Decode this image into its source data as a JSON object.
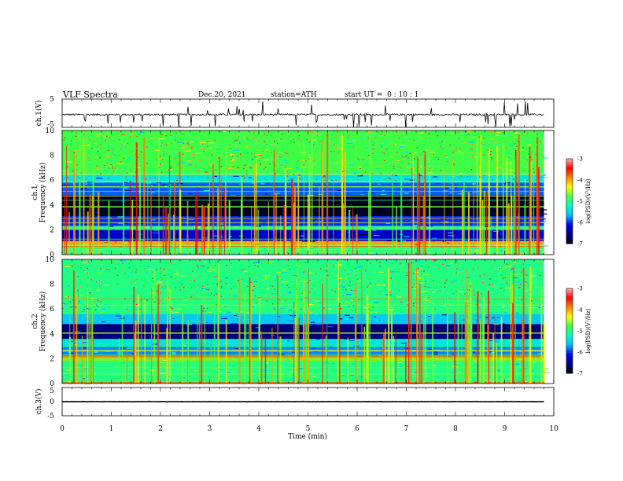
{
  "header": {
    "title": "VLF Spectra",
    "date": "Dec.20, 2021",
    "station": "station=ATH",
    "start_ut": "start UT =  0 : 10 : 1"
  },
  "chart_data": [
    {
      "type": "line",
      "panel": "ch.1 waveform",
      "ylabel": "ch.1(V)",
      "ylim": [
        -5,
        5
      ],
      "yticks": [
        "5",
        "-5"
      ],
      "xlim": [
        0,
        10
      ],
      "signal": {
        "baseline": -0.5,
        "noise_amplitude": 0.6,
        "spikes": "frequent short negative and positive spikes",
        "end_min": 9.8
      }
    },
    {
      "type": "heatmap",
      "panel": "ch.1 spectrogram",
      "ylabel_channel": "ch.1",
      "ylabel": "Frequency (kHz)",
      "ylim": [
        0,
        10
      ],
      "yticks": [
        "0",
        "2",
        "4",
        "6",
        "8",
        "10"
      ],
      "xlim": [
        0,
        10
      ],
      "colorbar": {
        "label": "log(PSD)(V²/Hz)",
        "range": [
          -7,
          -3
        ],
        "ticks": [
          "-3",
          "-4",
          "-5",
          "-6",
          "-7"
        ]
      },
      "bands": [
        {
          "from_khz": 0.0,
          "to_khz": 0.8,
          "level": -5.0
        },
        {
          "from_khz": 0.8,
          "to_khz": 1.1,
          "level": -4.0
        },
        {
          "from_khz": 1.1,
          "to_khz": 2.0,
          "level": -6.3
        },
        {
          "from_khz": 2.0,
          "to_khz": 2.3,
          "level": -5.0
        },
        {
          "from_khz": 2.3,
          "to_khz": 3.1,
          "level": -6.0
        },
        {
          "from_khz": 3.1,
          "to_khz": 4.8,
          "level": -6.9
        },
        {
          "from_khz": 4.8,
          "to_khz": 5.8,
          "level": -5.9
        },
        {
          "from_khz": 5.8,
          "to_khz": 6.5,
          "level": -5.4
        },
        {
          "from_khz": 6.5,
          "to_khz": 10.0,
          "level": -4.8
        }
      ]
    },
    {
      "type": "heatmap",
      "panel": "ch.2 spectrogram",
      "ylabel_channel": "ch.2",
      "ylabel": "Frequency (kHz)",
      "ylim": [
        0,
        10
      ],
      "yticks": [
        "0",
        "2",
        "4",
        "6",
        "8",
        "10"
      ],
      "xlim": [
        0,
        10
      ],
      "colorbar": {
        "label": "log(PSD)(V²/Hz)",
        "range": [
          -7,
          -3
        ],
        "ticks": [
          "-3",
          "-4",
          "-5",
          "-6",
          "-7"
        ]
      },
      "bands": [
        {
          "from_khz": 0.0,
          "to_khz": 1.8,
          "level": -5.0
        },
        {
          "from_khz": 1.8,
          "to_khz": 2.2,
          "level": -4.7
        },
        {
          "from_khz": 2.2,
          "to_khz": 3.0,
          "level": -5.8
        },
        {
          "from_khz": 3.0,
          "to_khz": 3.6,
          "level": -5.4
        },
        {
          "from_khz": 3.6,
          "to_khz": 4.8,
          "level": -6.6
        },
        {
          "from_khz": 4.8,
          "to_khz": 5.6,
          "level": -5.6
        },
        {
          "from_khz": 5.6,
          "to_khz": 10.0,
          "level": -5.0
        }
      ]
    },
    {
      "type": "line",
      "panel": "ch.3 waveform",
      "ylabel": "ch.3(V)",
      "ylim": [
        -5,
        5
      ],
      "yticks": [
        "5",
        "0",
        "-5"
      ],
      "xlim": [
        0,
        10
      ],
      "signal": {
        "baseline": 0.0,
        "noise_amplitude": 0.15,
        "end_min": 9.8
      }
    }
  ],
  "xaxis": {
    "label": "Time (min)",
    "ticks": [
      "0",
      "1",
      "2",
      "3",
      "4",
      "5",
      "6",
      "7",
      "8",
      "9",
      "10"
    ]
  },
  "colors": {
    "colormap": [
      "#000000",
      "#00008b",
      "#0000ff",
      "#00bfff",
      "#00ffbf",
      "#40ff40",
      "#ffff00",
      "#ff8000",
      "#ff0000",
      "#ffb0b0",
      "#ffffff"
    ],
    "waveform": "#000000"
  }
}
